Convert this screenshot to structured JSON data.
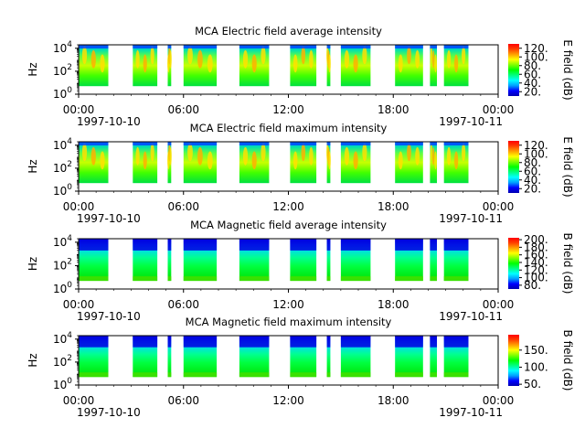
{
  "colors": {
    "background": "#ffffff",
    "colormap": [
      "#0000b0",
      "#0000ff",
      "#00a0ff",
      "#00ffff",
      "#00ff80",
      "#00ff00",
      "#80ff00",
      "#ffff00",
      "#ffa000",
      "#ff4000",
      "#ff0000"
    ]
  },
  "chart_data": [
    {
      "type": "heatmap",
      "title": "MCA  Electric field average intensity",
      "ylabel": "Hz",
      "xlabel": "",
      "colorbar_label": "E field (dB)",
      "colorbar_ticks": [
        "20.",
        "40.",
        "60.",
        "80.",
        "100.",
        "120."
      ],
      "colorbar_range": [
        10,
        130
      ],
      "y_ticks": [
        "10^0",
        "10^2",
        "10^4"
      ],
      "y_range_hz": [
        1,
        20000
      ],
      "x_ticks": [
        "00:00",
        "06:00",
        "12:00",
        "18:00",
        "00:00"
      ],
      "x_dates": [
        "1997-10-10",
        "1997-10-11"
      ],
      "x_range_hours": [
        0,
        24
      ],
      "data_intervals_hours": [
        [
          0.0,
          1.7
        ],
        [
          3.1,
          4.5
        ],
        [
          5.1,
          5.3
        ],
        [
          6.0,
          7.9
        ],
        [
          9.2,
          10.9
        ],
        [
          12.1,
          13.6
        ],
        [
          14.2,
          14.4
        ],
        [
          15.0,
          16.7
        ],
        [
          18.1,
          19.7
        ],
        [
          20.1,
          20.5
        ],
        [
          20.9,
          22.3
        ]
      ],
      "dominant_levels_db": [
        60,
        80,
        100
      ]
    },
    {
      "type": "heatmap",
      "title": "MCA  Electric field maximum intensity",
      "ylabel": "Hz",
      "xlabel": "",
      "colorbar_label": "E field (dB)",
      "colorbar_ticks": [
        "20.",
        "40.",
        "60.",
        "80.",
        "100.",
        "120."
      ],
      "colorbar_range": [
        10,
        130
      ],
      "y_ticks": [
        "10^0",
        "10^2",
        "10^4"
      ],
      "y_range_hz": [
        1,
        20000
      ],
      "x_ticks": [
        "00:00",
        "06:00",
        "12:00",
        "18:00",
        "00:00"
      ],
      "x_dates": [
        "1997-10-10",
        "1997-10-11"
      ],
      "x_range_hours": [
        0,
        24
      ],
      "data_intervals_hours": [
        [
          0.0,
          1.7
        ],
        [
          3.1,
          4.5
        ],
        [
          5.1,
          5.3
        ],
        [
          6.0,
          7.9
        ],
        [
          9.2,
          10.9
        ],
        [
          12.1,
          13.6
        ],
        [
          14.2,
          14.4
        ],
        [
          15.0,
          16.7
        ],
        [
          18.1,
          19.7
        ],
        [
          20.1,
          20.5
        ],
        [
          20.9,
          22.3
        ]
      ],
      "dominant_levels_db": [
        60,
        80,
        100
      ]
    },
    {
      "type": "heatmap",
      "title": "MCA  Magnetic field average intensity",
      "ylabel": "Hz",
      "xlabel": "",
      "colorbar_label": "B field (dB)",
      "colorbar_ticks": [
        "80.",
        "100.",
        "120.",
        "140.",
        "160.",
        "180.",
        "200."
      ],
      "colorbar_range": [
        70,
        205
      ],
      "y_ticks": [
        "10^0",
        "10^2",
        "10^4"
      ],
      "y_range_hz": [
        1,
        20000
      ],
      "x_ticks": [
        "00:00",
        "06:00",
        "12:00",
        "18:00",
        "00:00"
      ],
      "x_dates": [
        "1997-10-10",
        "1997-10-11"
      ],
      "x_range_hours": [
        0,
        24
      ],
      "data_intervals_hours": [
        [
          0.0,
          1.7
        ],
        [
          3.1,
          4.5
        ],
        [
          5.1,
          5.3
        ],
        [
          6.0,
          7.9
        ],
        [
          9.2,
          10.9
        ],
        [
          12.1,
          13.6
        ],
        [
          14.2,
          14.4
        ],
        [
          15.0,
          16.7
        ],
        [
          18.1,
          19.7
        ],
        [
          20.1,
          20.5
        ],
        [
          20.9,
          22.3
        ]
      ],
      "dominant_levels_db": [
        100,
        120,
        140
      ]
    },
    {
      "type": "heatmap",
      "title": "MCA  Magnetic field maximum intensity",
      "ylabel": "Hz",
      "xlabel": "",
      "colorbar_label": "B field (dB)",
      "colorbar_ticks": [
        "50.",
        "100.",
        "150."
      ],
      "colorbar_range": [
        45,
        195
      ],
      "y_ticks": [
        "10^0",
        "10^2",
        "10^4"
      ],
      "y_range_hz": [
        1,
        20000
      ],
      "x_ticks": [
        "00:00",
        "06:00",
        "12:00",
        "18:00",
        "00:00"
      ],
      "x_dates": [
        "1997-10-10",
        "1997-10-11"
      ],
      "x_range_hours": [
        0,
        24
      ],
      "data_intervals_hours": [
        [
          0.0,
          1.7
        ],
        [
          3.1,
          4.5
        ],
        [
          5.1,
          5.3
        ],
        [
          6.0,
          7.9
        ],
        [
          9.2,
          10.9
        ],
        [
          12.1,
          13.6
        ],
        [
          14.2,
          14.4
        ],
        [
          15.0,
          16.7
        ],
        [
          18.1,
          19.7
        ],
        [
          20.1,
          20.5
        ],
        [
          20.9,
          22.3
        ]
      ],
      "dominant_levels_db": [
        90,
        110,
        130
      ]
    }
  ]
}
